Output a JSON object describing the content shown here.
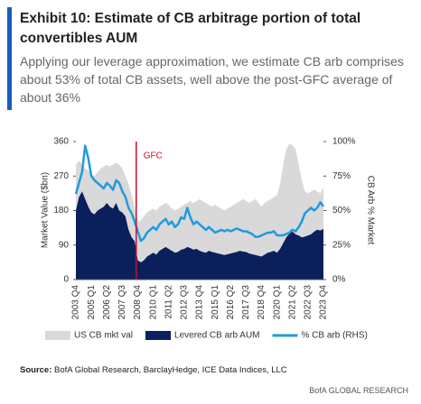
{
  "chart_data": {
    "type": "area-line",
    "title": "Exhibit 10: Estimate of CB arbitrage portion of total convertibles AUM",
    "subtitle": "Applying our leverage approximation, we estimate CB arb comprises about 53% of total CB assets, well above the post-GFC average of about 36%",
    "source_label": "Source:",
    "source": "BofA Global Research, BarclayHedge, ICE Data Indices, LLC",
    "footer": "BofA GLOBAL RESEARCH",
    "y_label": "Market Value ($bn)",
    "y2_label": "CB Arb % Market",
    "annotation": "GFC",
    "categories": [
      "2003 Q4",
      null,
      null,
      null,
      null,
      "2005 Q1",
      null,
      null,
      null,
      null,
      "2006 Q2",
      null,
      null,
      null,
      null,
      "2007 Q3",
      null,
      null,
      null,
      null,
      "2008 Q4",
      null,
      null,
      null,
      null,
      "2010 Q1",
      null,
      null,
      null,
      null,
      "2011 Q2",
      null,
      null,
      null,
      null,
      "2012 Q3",
      null,
      null,
      null,
      null,
      "2013 Q4",
      null,
      null,
      null,
      null,
      "2015 Q1",
      null,
      null,
      null,
      null,
      "2016 Q2",
      null,
      null,
      null,
      null,
      "2017 Q3",
      null,
      null,
      null,
      null,
      "2018 Q4",
      null,
      null,
      null,
      null,
      "2020 Q1",
      null,
      null,
      null,
      null,
      "2021 Q2",
      null,
      null,
      null,
      null,
      "2022 Q3",
      null,
      null,
      null,
      null,
      "2023 Q4"
    ],
    "series": [
      {
        "name": "US CB mkt val",
        "color": "#d9d9d9",
        "kind": "area",
        "values": [
          300,
          310,
          300,
          290,
          285,
          275,
          270,
          280,
          290,
          295,
          300,
          295,
          300,
          305,
          300,
          290,
          270,
          250,
          220,
          190,
          150,
          155,
          165,
          175,
          180,
          185,
          180,
          190,
          195,
          200,
          195,
          185,
          180,
          185,
          190,
          195,
          200,
          205,
          200,
          205,
          210,
          205,
          200,
          195,
          190,
          195,
          190,
          185,
          180,
          185,
          190,
          195,
          200,
          205,
          210,
          205,
          200,
          205,
          210,
          200,
          190,
          200,
          205,
          210,
          215,
          220,
          250,
          300,
          340,
          355,
          350,
          340,
          300,
          260,
          230,
          225,
          230,
          235,
          230,
          225,
          240
        ]
      },
      {
        "name": "Levered CB arb AUM",
        "color": "#0a1f5c",
        "kind": "area",
        "values": [
          180,
          215,
          230,
          210,
          190,
          175,
          170,
          180,
          185,
          190,
          200,
          190,
          185,
          200,
          180,
          175,
          165,
          130,
          110,
          100,
          50,
          45,
          50,
          60,
          65,
          70,
          65,
          75,
          80,
          85,
          80,
          75,
          70,
          72,
          78,
          80,
          85,
          82,
          78,
          80,
          75,
          72,
          70,
          75,
          72,
          70,
          68,
          66,
          64,
          66,
          68,
          70,
          72,
          75,
          73,
          72,
          68,
          66,
          64,
          62,
          60,
          65,
          70,
          72,
          75,
          70,
          80,
          95,
          110,
          120,
          125,
          118,
          115,
          110,
          112,
          115,
          118,
          125,
          130,
          128,
          132
        ]
      },
      {
        "name": "% CB arb (RHS)",
        "color": "#1f9ae0",
        "kind": "line",
        "axis": "y2",
        "values": [
          62,
          70,
          78,
          97,
          88,
          75,
          72,
          70,
          68,
          66,
          70,
          68,
          65,
          72,
          70,
          64,
          60,
          52,
          48,
          42,
          35,
          28,
          30,
          34,
          36,
          38,
          36,
          40,
          42,
          44,
          40,
          42,
          38,
          40,
          45,
          44,
          52,
          45,
          40,
          42,
          40,
          38,
          36,
          38,
          36,
          34,
          35,
          36,
          35,
          36,
          35,
          36,
          37,
          36,
          35,
          35,
          34,
          33,
          31,
          31,
          32,
          33,
          34,
          34,
          35,
          32,
          32,
          32,
          33,
          34,
          36,
          35,
          38,
          42,
          48,
          50,
          52,
          50,
          52,
          56,
          53
        ]
      }
    ],
    "ylim": [
      0,
      360
    ],
    "yticks": [
      0,
      90,
      180,
      270,
      360
    ],
    "y2lim": [
      0,
      100
    ],
    "y2ticks": [
      {
        "value": 0,
        "label": "0%"
      },
      {
        "value": 25,
        "label": "25%"
      },
      {
        "value": 50,
        "label": "50%"
      },
      {
        "value": 75,
        "label": "75%"
      },
      {
        "value": 100,
        "label": "100%"
      }
    ],
    "legend": "bottom"
  }
}
